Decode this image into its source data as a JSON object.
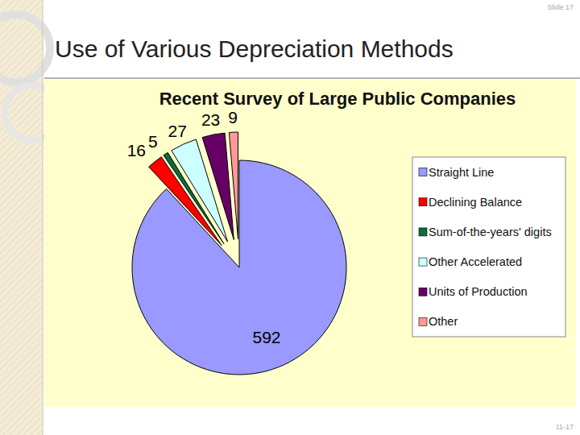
{
  "slide": {
    "title": "Use of Various Depreciation Methods",
    "slide_label": "Slide 17",
    "page_number": "11-17"
  },
  "chart_data": {
    "type": "pie",
    "title": "Recent Survey of Large Public Companies",
    "categories": [
      "Straight Line",
      "Declining Balance",
      "Sum-of-the-years' digits",
      "Other Accelerated",
      "Units of Production",
      "Other"
    ],
    "values": [
      592,
      16,
      5,
      27,
      23,
      9
    ],
    "colors": [
      "#9999ff",
      "#ff0000",
      "#0f6b3c",
      "#ccffff",
      "#660066",
      "#ff9999"
    ],
    "data_labels": true,
    "legend": "right"
  }
}
